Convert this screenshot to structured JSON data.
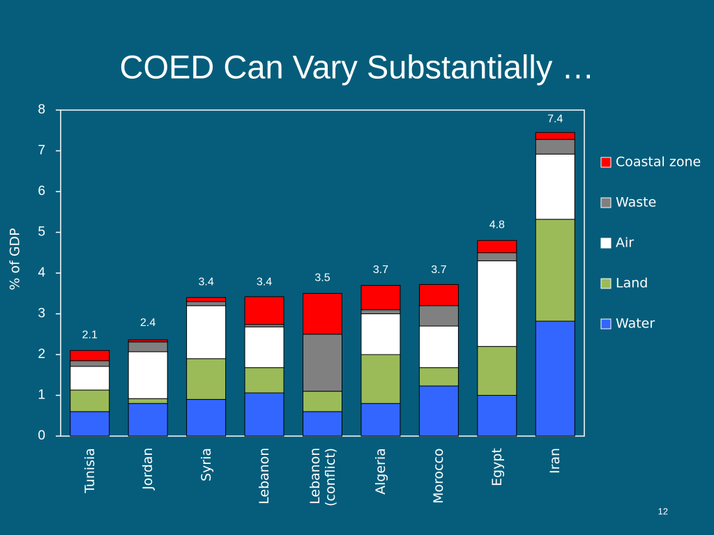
{
  "chart_data": {
    "type": "stacked_bar",
    "title": "COED Can Vary Substantially …",
    "ylabel": "% of GDP",
    "page_number": "12",
    "categories": [
      "Tunisia",
      "Jordan",
      "Syria",
      "Lebanon",
      "Lebanon (conflict)",
      "Algeria",
      "Morocco",
      "Egypt",
      "Iran"
    ],
    "series": [
      {
        "name": "Water",
        "color": "#3366ff",
        "values": [
          0.6,
          0.8,
          0.9,
          1.06,
          0.6,
          0.8,
          1.23,
          1.0,
          2.82
        ]
      },
      {
        "name": "Land",
        "color": "#9bbb59",
        "values": [
          0.53,
          0.12,
          1.0,
          0.62,
          0.5,
          1.2,
          0.45,
          1.2,
          2.5
        ]
      },
      {
        "name": "Air",
        "color": "#ffffff",
        "values": [
          0.58,
          1.15,
          1.3,
          1.0,
          0,
          1.0,
          1.02,
          2.1,
          1.6
        ]
      },
      {
        "name": "Waste",
        "color": "#808080",
        "values": [
          0.14,
          0.24,
          0.1,
          0.06,
          1.4,
          0.1,
          0.5,
          0.2,
          0.36
        ]
      },
      {
        "name": "Coastal zone",
        "color": "#ff0000",
        "values": [
          0.25,
          0.05,
          0.1,
          0.68,
          1.0,
          0.6,
          0.52,
          0.3,
          0.17
        ]
      }
    ],
    "totals": [
      2.1,
      2.4,
      3.4,
      3.4,
      3.5,
      3.7,
      3.7,
      4.8,
      7.4
    ],
    "ylim": [
      0,
      8
    ],
    "yticks": [
      0,
      1,
      2,
      3,
      4,
      5,
      6,
      7,
      8
    ],
    "legend": "right"
  }
}
